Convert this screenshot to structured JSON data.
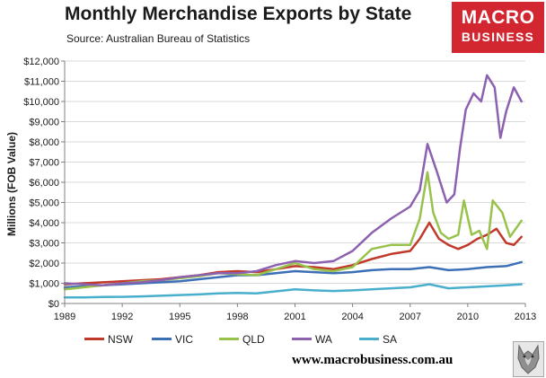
{
  "header": {
    "title": "Monthly Merchandise Exports by State",
    "subtitle": "Source: Australian Bureau of Statistics"
  },
  "logo": {
    "line1": "MACRO",
    "line2": "BUSINESS",
    "color": "#d22630"
  },
  "footer": {
    "url": "www.macrobusiness.com.au",
    "badge_icon": "wolf-icon"
  },
  "chart_data": {
    "type": "line",
    "title": "Monthly Merchandise Exports by State",
    "subtitle": "Source: Australian Bureau of Statistics",
    "xlabel": "",
    "ylabel": "Millions (FOB Value)",
    "xlim": [
      1989,
      2013
    ],
    "ylim": [
      0,
      12000
    ],
    "x_ticks": [
      1989,
      1992,
      1995,
      1998,
      2001,
      2004,
      2007,
      2010,
      2013
    ],
    "x_tick_labels": [
      "1989",
      "1992",
      "1995",
      "1998",
      "2001",
      "2004",
      "2007",
      "2010",
      "2013"
    ],
    "y_ticks": [
      0,
      1000,
      2000,
      3000,
      4000,
      5000,
      6000,
      7000,
      8000,
      9000,
      10000,
      11000,
      12000
    ],
    "y_tick_labels": [
      "$0",
      "$1,000",
      "$2,000",
      "$3,000",
      "$4,000",
      "$5,000",
      "$6,000",
      "$7,000",
      "$8,000",
      "$9,000",
      "$10,000",
      "$11,000",
      "$12,000"
    ],
    "grid": {
      "horizontal": true,
      "vertical": false
    },
    "legend_position": "bottom",
    "series": [
      {
        "name": "NSW",
        "color": "#c0392b",
        "points": [
          [
            1989,
            950
          ],
          [
            1990,
            1000
          ],
          [
            1991,
            1050
          ],
          [
            1992,
            1100
          ],
          [
            1993,
            1150
          ],
          [
            1994,
            1200
          ],
          [
            1995,
            1300
          ],
          [
            1996,
            1400
          ],
          [
            1997,
            1550
          ],
          [
            1998,
            1600
          ],
          [
            1999,
            1550
          ],
          [
            2000,
            1700
          ],
          [
            2001,
            1850
          ],
          [
            2002,
            1800
          ],
          [
            2003,
            1700
          ],
          [
            2004,
            1900
          ],
          [
            2005,
            2200
          ],
          [
            2006,
            2450
          ],
          [
            2007,
            2600
          ],
          [
            2007.5,
            3200
          ],
          [
            2008,
            4000
          ],
          [
            2008.5,
            3200
          ],
          [
            2009,
            2900
          ],
          [
            2009.5,
            2700
          ],
          [
            2010,
            2900
          ],
          [
            2010.5,
            3200
          ],
          [
            2011,
            3400
          ],
          [
            2011.5,
            3700
          ],
          [
            2012,
            3000
          ],
          [
            2012.4,
            2900
          ],
          [
            2012.8,
            3300
          ]
        ]
      },
      {
        "name": "VIC",
        "color": "#3d6fb6",
        "points": [
          [
            1989,
            800
          ],
          [
            1990,
            850
          ],
          [
            1991,
            900
          ],
          [
            1992,
            950
          ],
          [
            1993,
            1000
          ],
          [
            1994,
            1050
          ],
          [
            1995,
            1100
          ],
          [
            1996,
            1200
          ],
          [
            1997,
            1300
          ],
          [
            1998,
            1400
          ],
          [
            1999,
            1400
          ],
          [
            2000,
            1500
          ],
          [
            2001,
            1600
          ],
          [
            2002,
            1550
          ],
          [
            2003,
            1500
          ],
          [
            2004,
            1550
          ],
          [
            2005,
            1650
          ],
          [
            2006,
            1700
          ],
          [
            2007,
            1700
          ],
          [
            2008,
            1800
          ],
          [
            2009,
            1650
          ],
          [
            2010,
            1700
          ],
          [
            2011,
            1800
          ],
          [
            2012,
            1850
          ],
          [
            2012.8,
            2050
          ]
        ]
      },
      {
        "name": "QLD",
        "color": "#99c24d",
        "points": [
          [
            1989,
            700
          ],
          [
            1990,
            800
          ],
          [
            1991,
            900
          ],
          [
            1992,
            1000
          ],
          [
            1993,
            1100
          ],
          [
            1994,
            1150
          ],
          [
            1995,
            1250
          ],
          [
            1996,
            1350
          ],
          [
            1997,
            1500
          ],
          [
            1998,
            1450
          ],
          [
            1999,
            1400
          ],
          [
            2000,
            1700
          ],
          [
            2001,
            2000
          ],
          [
            2002,
            1700
          ],
          [
            2003,
            1600
          ],
          [
            2004,
            1800
          ],
          [
            2005,
            2700
          ],
          [
            2006,
            2900
          ],
          [
            2007,
            2900
          ],
          [
            2007.5,
            4200
          ],
          [
            2007.9,
            6500
          ],
          [
            2008.2,
            4500
          ],
          [
            2008.6,
            3500
          ],
          [
            2009,
            3200
          ],
          [
            2009.5,
            3400
          ],
          [
            2009.8,
            5100
          ],
          [
            2010.2,
            3400
          ],
          [
            2010.6,
            3600
          ],
          [
            2011,
            2700
          ],
          [
            2011.3,
            5100
          ],
          [
            2011.8,
            4500
          ],
          [
            2012.2,
            3300
          ],
          [
            2012.8,
            4100
          ]
        ]
      },
      {
        "name": "WA",
        "color": "#8c62b0",
        "points": [
          [
            1989,
            1000
          ],
          [
            1990,
            950
          ],
          [
            1991,
            900
          ],
          [
            1992,
            1000
          ],
          [
            1993,
            1050
          ],
          [
            1994,
            1150
          ],
          [
            1995,
            1300
          ],
          [
            1996,
            1400
          ],
          [
            1997,
            1500
          ],
          [
            1998,
            1500
          ],
          [
            1999,
            1600
          ],
          [
            2000,
            1900
          ],
          [
            2001,
            2100
          ],
          [
            2002,
            2000
          ],
          [
            2003,
            2100
          ],
          [
            2004,
            2600
          ],
          [
            2005,
            3500
          ],
          [
            2006,
            4200
          ],
          [
            2007,
            4800
          ],
          [
            2007.5,
            5600
          ],
          [
            2007.9,
            7900
          ],
          [
            2008.4,
            6500
          ],
          [
            2008.9,
            5000
          ],
          [
            2009.3,
            5400
          ],
          [
            2009.6,
            7700
          ],
          [
            2009.9,
            9600
          ],
          [
            2010.3,
            10400
          ],
          [
            2010.7,
            10000
          ],
          [
            2011,
            11300
          ],
          [
            2011.4,
            10700
          ],
          [
            2011.7,
            8200
          ],
          [
            2012,
            9500
          ],
          [
            2012.4,
            10700
          ],
          [
            2012.8,
            10000
          ]
        ]
      },
      {
        "name": "SA",
        "color": "#4aaecd",
        "points": [
          [
            1989,
            300
          ],
          [
            1990,
            300
          ],
          [
            1991,
            320
          ],
          [
            1992,
            330
          ],
          [
            1993,
            350
          ],
          [
            1994,
            380
          ],
          [
            1995,
            420
          ],
          [
            1996,
            450
          ],
          [
            1997,
            500
          ],
          [
            1998,
            520
          ],
          [
            1999,
            500
          ],
          [
            2000,
            600
          ],
          [
            2001,
            700
          ],
          [
            2002,
            650
          ],
          [
            2003,
            620
          ],
          [
            2004,
            650
          ],
          [
            2005,
            700
          ],
          [
            2006,
            750
          ],
          [
            2007,
            800
          ],
          [
            2008,
            950
          ],
          [
            2009,
            750
          ],
          [
            2010,
            800
          ],
          [
            2011,
            850
          ],
          [
            2012,
            900
          ],
          [
            2012.8,
            950
          ]
        ]
      }
    ]
  }
}
